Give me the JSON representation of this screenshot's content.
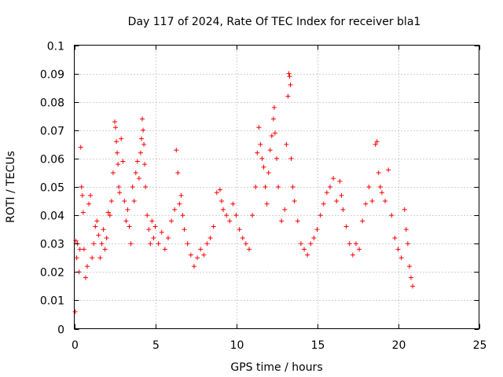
{
  "chart_data": {
    "type": "scatter",
    "title": "Day 117 of 2024, Rate Of TEC Index for receiver bla1",
    "xlabel": "GPS time / hours",
    "ylabel": "ROTI / TECUs",
    "xlim": [
      0,
      25
    ],
    "ylim": [
      0,
      0.1
    ],
    "x_ticks": [
      0,
      5,
      10,
      15,
      20,
      25
    ],
    "x_tick_labels": [
      "0",
      "5",
      "10",
      "15",
      "20",
      "25"
    ],
    "y_ticks": [
      0,
      0.01,
      0.02,
      0.03,
      0.04,
      0.05,
      0.06,
      0.07,
      0.08,
      0.09,
      0.1
    ],
    "y_tick_labels": [
      "0",
      "0.01",
      "0.02",
      "0.03",
      "0.04",
      "0.05",
      "0.06",
      "0.07",
      "0.08",
      "0.09",
      "0.1"
    ],
    "grid": true,
    "marker": "plus",
    "marker_color": "#ff0000",
    "points": [
      [
        0.05,
        0.006
      ],
      [
        0.1,
        0.031
      ],
      [
        0.15,
        0.025
      ],
      [
        0.2,
        0.03
      ],
      [
        0.3,
        0.02
      ],
      [
        0.35,
        0.028
      ],
      [
        0.4,
        0.064
      ],
      [
        0.45,
        0.05
      ],
      [
        0.5,
        0.047
      ],
      [
        0.55,
        0.041
      ],
      [
        0.6,
        0.028
      ],
      [
        0.7,
        0.018
      ],
      [
        0.8,
        0.022
      ],
      [
        0.9,
        0.044
      ],
      [
        1.0,
        0.047
      ],
      [
        1.1,
        0.025
      ],
      [
        1.2,
        0.03
      ],
      [
        1.3,
        0.036
      ],
      [
        1.4,
        0.038
      ],
      [
        1.5,
        0.033
      ],
      [
        1.6,
        0.025
      ],
      [
        1.7,
        0.03
      ],
      [
        1.8,
        0.035
      ],
      [
        1.9,
        0.028
      ],
      [
        2.0,
        0.032
      ],
      [
        2.1,
        0.041
      ],
      [
        2.2,
        0.04
      ],
      [
        2.3,
        0.045
      ],
      [
        2.4,
        0.055
      ],
      [
        2.5,
        0.073
      ],
      [
        2.55,
        0.071
      ],
      [
        2.6,
        0.066
      ],
      [
        2.65,
        0.062
      ],
      [
        2.7,
        0.058
      ],
      [
        2.75,
        0.05
      ],
      [
        2.8,
        0.048
      ],
      [
        2.9,
        0.067
      ],
      [
        3.0,
        0.059
      ],
      [
        3.1,
        0.045
      ],
      [
        3.2,
        0.038
      ],
      [
        3.3,
        0.042
      ],
      [
        3.4,
        0.036
      ],
      [
        3.5,
        0.03
      ],
      [
        3.6,
        0.05
      ],
      [
        3.7,
        0.045
      ],
      [
        3.8,
        0.055
      ],
      [
        3.9,
        0.059
      ],
      [
        4.0,
        0.053
      ],
      [
        4.1,
        0.062
      ],
      [
        4.15,
        0.067
      ],
      [
        4.2,
        0.074
      ],
      [
        4.25,
        0.07
      ],
      [
        4.3,
        0.065
      ],
      [
        4.35,
        0.058
      ],
      [
        4.4,
        0.05
      ],
      [
        4.5,
        0.04
      ],
      [
        4.6,
        0.035
      ],
      [
        4.7,
        0.03
      ],
      [
        4.8,
        0.038
      ],
      [
        4.9,
        0.032
      ],
      [
        5.0,
        0.036
      ],
      [
        5.2,
        0.03
      ],
      [
        5.4,
        0.034
      ],
      [
        5.6,
        0.028
      ],
      [
        5.8,
        0.032
      ],
      [
        6.0,
        0.038
      ],
      [
        6.2,
        0.042
      ],
      [
        6.3,
        0.063
      ],
      [
        6.4,
        0.055
      ],
      [
        6.5,
        0.044
      ],
      [
        6.6,
        0.047
      ],
      [
        6.7,
        0.04
      ],
      [
        6.8,
        0.035
      ],
      [
        7.0,
        0.03
      ],
      [
        7.2,
        0.026
      ],
      [
        7.4,
        0.022
      ],
      [
        7.6,
        0.025
      ],
      [
        7.8,
        0.028
      ],
      [
        8.0,
        0.026
      ],
      [
        8.2,
        0.03
      ],
      [
        8.4,
        0.032
      ],
      [
        8.6,
        0.036
      ],
      [
        8.8,
        0.048
      ],
      [
        9.0,
        0.049
      ],
      [
        9.1,
        0.045
      ],
      [
        9.2,
        0.042
      ],
      [
        9.4,
        0.04
      ],
      [
        9.6,
        0.038
      ],
      [
        9.8,
        0.044
      ],
      [
        10.0,
        0.04
      ],
      [
        10.2,
        0.035
      ],
      [
        10.4,
        0.032
      ],
      [
        10.6,
        0.03
      ],
      [
        10.8,
        0.028
      ],
      [
        11.0,
        0.04
      ],
      [
        11.2,
        0.05
      ],
      [
        11.3,
        0.062
      ],
      [
        11.4,
        0.071
      ],
      [
        11.5,
        0.065
      ],
      [
        11.6,
        0.06
      ],
      [
        11.7,
        0.057
      ],
      [
        11.8,
        0.05
      ],
      [
        11.9,
        0.044
      ],
      [
        12.0,
        0.055
      ],
      [
        12.1,
        0.063
      ],
      [
        12.2,
        0.068
      ],
      [
        12.3,
        0.074
      ],
      [
        12.35,
        0.078
      ],
      [
        12.4,
        0.069
      ],
      [
        12.5,
        0.06
      ],
      [
        12.6,
        0.05
      ],
      [
        12.8,
        0.038
      ],
      [
        13.0,
        0.042
      ],
      [
        13.1,
        0.065
      ],
      [
        13.2,
        0.082
      ],
      [
        13.25,
        0.09
      ],
      [
        13.3,
        0.089
      ],
      [
        13.35,
        0.086
      ],
      [
        13.4,
        0.06
      ],
      [
        13.5,
        0.05
      ],
      [
        13.6,
        0.045
      ],
      [
        13.8,
        0.038
      ],
      [
        14.0,
        0.03
      ],
      [
        14.2,
        0.028
      ],
      [
        14.4,
        0.026
      ],
      [
        14.6,
        0.03
      ],
      [
        14.8,
        0.032
      ],
      [
        15.0,
        0.035
      ],
      [
        15.2,
        0.04
      ],
      [
        15.4,
        0.044
      ],
      [
        15.6,
        0.048
      ],
      [
        15.8,
        0.05
      ],
      [
        16.0,
        0.053
      ],
      [
        16.2,
        0.045
      ],
      [
        16.4,
        0.052
      ],
      [
        16.5,
        0.047
      ],
      [
        16.6,
        0.042
      ],
      [
        16.8,
        0.036
      ],
      [
        17.0,
        0.03
      ],
      [
        17.2,
        0.026
      ],
      [
        17.4,
        0.03
      ],
      [
        17.6,
        0.028
      ],
      [
        17.8,
        0.038
      ],
      [
        18.0,
        0.044
      ],
      [
        18.2,
        0.05
      ],
      [
        18.4,
        0.045
      ],
      [
        18.6,
        0.065
      ],
      [
        18.7,
        0.066
      ],
      [
        18.8,
        0.055
      ],
      [
        18.9,
        0.05
      ],
      [
        19.0,
        0.048
      ],
      [
        19.2,
        0.045
      ],
      [
        19.4,
        0.056
      ],
      [
        19.6,
        0.04
      ],
      [
        19.8,
        0.032
      ],
      [
        20.0,
        0.028
      ],
      [
        20.2,
        0.025
      ],
      [
        20.4,
        0.042
      ],
      [
        20.5,
        0.035
      ],
      [
        20.6,
        0.03
      ],
      [
        20.7,
        0.022
      ],
      [
        20.8,
        0.018
      ],
      [
        20.9,
        0.015
      ]
    ]
  }
}
